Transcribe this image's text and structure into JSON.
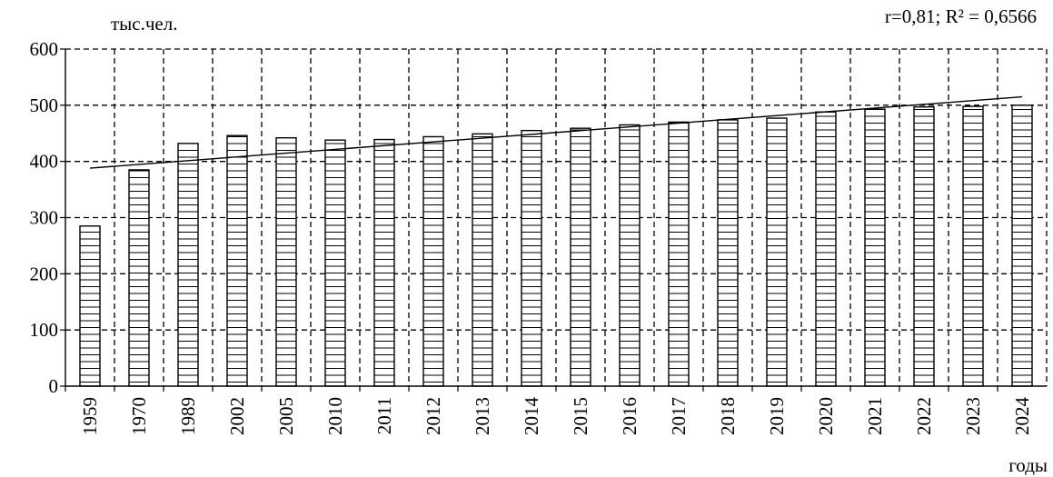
{
  "chart_data": {
    "type": "bar",
    "ylabel": "тыс.чел.",
    "xlabel": "годы",
    "annotation": "r=0,81; R² = 0,6566",
    "ylim": [
      0,
      600
    ],
    "yticks": [
      "0",
      "100",
      "200",
      "300",
      "400",
      "500",
      "600"
    ],
    "categories": [
      "1959",
      "1970",
      "1989",
      "2002",
      "2005",
      "2010",
      "2011",
      "2012",
      "2013",
      "2014",
      "2015",
      "2016",
      "2017",
      "2018",
      "2019",
      "2020",
      "2021",
      "2022",
      "2023",
      "2024"
    ],
    "values": [
      285,
      385,
      432,
      446,
      442,
      438,
      439,
      444,
      449,
      455,
      459,
      465,
      470,
      474,
      477,
      488,
      493,
      497,
      498,
      500
    ],
    "trendline": {
      "type": "linear",
      "start": 388,
      "end": 515
    },
    "grid": true,
    "bar_fill": "horizontal-hatch",
    "colors": {
      "bar_stroke": "#000000",
      "grid": "#000000",
      "background": "#ffffff"
    }
  }
}
